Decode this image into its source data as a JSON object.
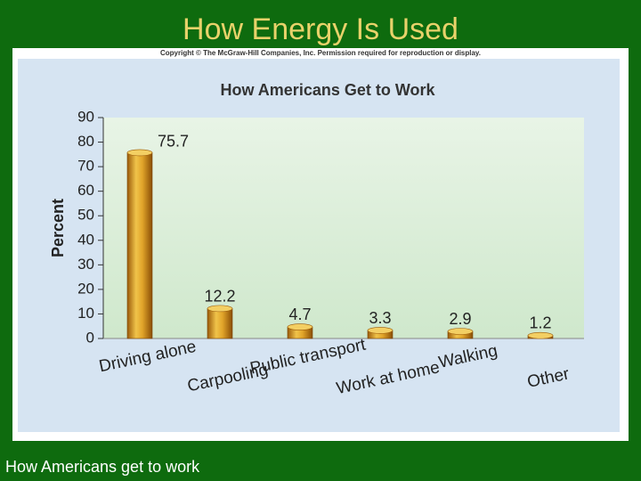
{
  "slide": {
    "title": "How Energy Is Used",
    "copyright": "Copyright © The McGraw-Hill Companies, Inc. Permission required for reproduction or display.",
    "caption": "How Americans get to work"
  },
  "colors": {
    "background": "#0e6b0e",
    "title": "#e8d26a",
    "bar_gold": "#d79a1c",
    "plot_green": "#dcefd8"
  },
  "chart_data": {
    "type": "bar",
    "title": "How Americans Get to Work",
    "ylabel": "Percent",
    "xlabel": "",
    "ylim": [
      0,
      90
    ],
    "yticks": [
      0,
      10,
      20,
      30,
      40,
      50,
      60,
      70,
      80,
      90
    ],
    "grid": false,
    "categories": [
      "Driving alone",
      "Carpooling",
      "Public transport",
      "Work at home",
      "Walking",
      "Other"
    ],
    "values": [
      75.7,
      12.2,
      4.7,
      3.3,
      2.9,
      1.2
    ],
    "data_labels": [
      "75.7",
      "12.2",
      "4.7",
      "3.3",
      "2.9",
      "1.2"
    ]
  }
}
